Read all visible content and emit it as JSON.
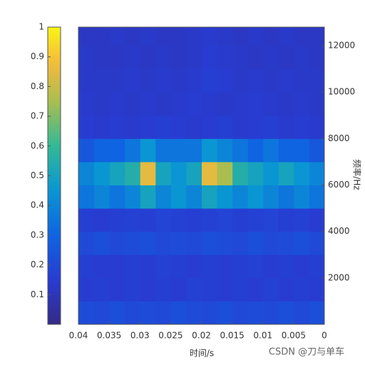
{
  "chart_data": {
    "type": "heatmap",
    "x_label": "时间/s",
    "y_label": "频率/Hz",
    "xlim": [
      0,
      0.04
    ],
    "xticks": [
      0,
      0.005,
      0.01,
      0.015,
      0.02,
      0.025,
      0.03,
      0.035,
      0.04
    ],
    "ylim": [
      0,
      12800
    ],
    "yticks": [
      2000,
      4000,
      6000,
      8000,
      10000,
      12000
    ],
    "clim": [
      0,
      1
    ],
    "cticks": [
      0.1,
      0.2,
      0.3,
      0.4,
      0.5,
      0.6,
      0.7,
      0.8,
      0.9,
      1
    ],
    "x_edges": [
      0,
      0.0025,
      0.005,
      0.0075,
      0.01,
      0.0125,
      0.015,
      0.0175,
      0.02,
      0.0225,
      0.025,
      0.0275,
      0.03,
      0.0325,
      0.035,
      0.0375,
      0.04
    ],
    "y_edges": [
      0,
      1000,
      2000,
      3000,
      4000,
      5000,
      6000,
      7000,
      8000,
      9000,
      10000,
      11000,
      12000,
      12800
    ],
    "z": [
      [
        0.22,
        0.2,
        0.22,
        0.2,
        0.21,
        0.2,
        0.22,
        0.2,
        0.21,
        0.22,
        0.2,
        0.21,
        0.2,
        0.22,
        0.2,
        0.21
      ],
      [
        0.15,
        0.16,
        0.15,
        0.17,
        0.15,
        0.16,
        0.15,
        0.16,
        0.17,
        0.15,
        0.16,
        0.15,
        0.16,
        0.15,
        0.16,
        0.15
      ],
      [
        0.16,
        0.15,
        0.16,
        0.15,
        0.17,
        0.16,
        0.15,
        0.16,
        0.15,
        0.16,
        0.17,
        0.15,
        0.16,
        0.15,
        0.15,
        0.16
      ],
      [
        0.2,
        0.22,
        0.21,
        0.2,
        0.22,
        0.2,
        0.21,
        0.22,
        0.2,
        0.21,
        0.2,
        0.22,
        0.21,
        0.2,
        0.22,
        0.2
      ],
      [
        0.15,
        0.17,
        0.16,
        0.18,
        0.17,
        0.16,
        0.18,
        0.17,
        0.16,
        0.17,
        0.18,
        0.16,
        0.17,
        0.16,
        0.15,
        0.16
      ],
      [
        0.35,
        0.4,
        0.35,
        0.4,
        0.45,
        0.4,
        0.45,
        0.5,
        0.4,
        0.45,
        0.4,
        0.5,
        0.4,
        0.35,
        0.4,
        0.35
      ],
      [
        0.4,
        0.45,
        0.5,
        0.45,
        0.5,
        0.55,
        0.75,
        0.85,
        0.5,
        0.45,
        0.5,
        0.85,
        0.55,
        0.5,
        0.45,
        0.4
      ],
      [
        0.25,
        0.3,
        0.3,
        0.35,
        0.3,
        0.35,
        0.4,
        0.45,
        0.35,
        0.35,
        0.35,
        0.45,
        0.35,
        0.3,
        0.3,
        0.25
      ],
      [
        0.14,
        0.15,
        0.14,
        0.16,
        0.15,
        0.14,
        0.16,
        0.15,
        0.14,
        0.15,
        0.16,
        0.15,
        0.14,
        0.15,
        0.14,
        0.15
      ],
      [
        0.13,
        0.14,
        0.13,
        0.14,
        0.15,
        0.14,
        0.13,
        0.14,
        0.15,
        0.14,
        0.13,
        0.14,
        0.13,
        0.14,
        0.13,
        0.14
      ],
      [
        0.13,
        0.13,
        0.14,
        0.13,
        0.14,
        0.13,
        0.15,
        0.16,
        0.14,
        0.13,
        0.14,
        0.13,
        0.14,
        0.13,
        0.13,
        0.13
      ],
      [
        0.12,
        0.13,
        0.12,
        0.13,
        0.12,
        0.13,
        0.14,
        0.15,
        0.13,
        0.12,
        0.13,
        0.12,
        0.13,
        0.12,
        0.12,
        0.13
      ],
      [
        0.12,
        0.12,
        0.13,
        0.12,
        0.13,
        0.12,
        0.13,
        0.14,
        0.13,
        0.12,
        0.12,
        0.13,
        0.12,
        0.13,
        0.12,
        0.12
      ]
    ]
  },
  "watermark": "CSDN @刀与单车"
}
